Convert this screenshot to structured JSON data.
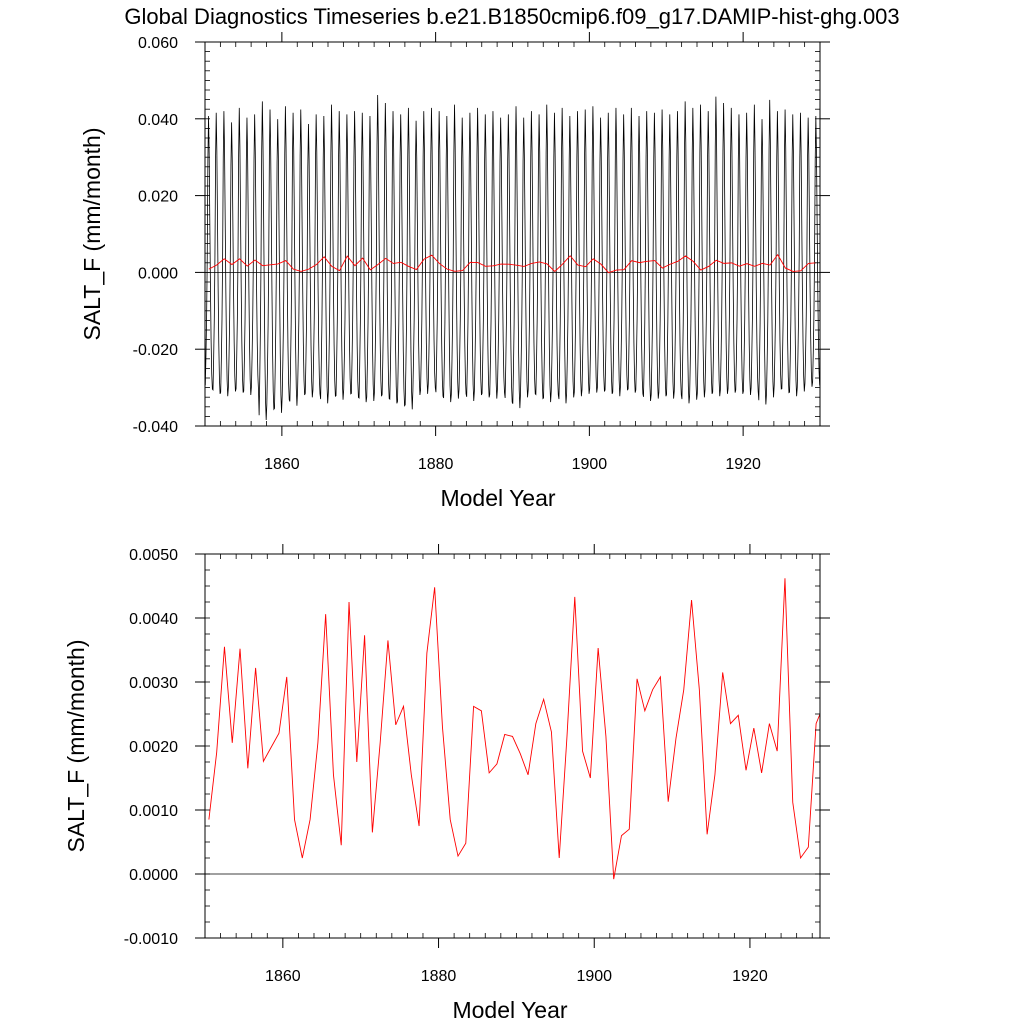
{
  "title": "Global Diagnostics Timeseries b.e21.B1850cmip6.f09_g17.DAMIP-hist-ghg.003",
  "colors": {
    "monthly": "#000000",
    "annual": "#ff0000",
    "zero_line": "#000000"
  },
  "chart_data": [
    {
      "type": "line",
      "xlabel": "Model Year",
      "ylabel": "SALT_F (mm/month)",
      "xlim": [
        1850,
        1930
      ],
      "ylim": [
        -0.04,
        0.06
      ],
      "x_ticks": [
        1860,
        1880,
        1900,
        1920
      ],
      "x_tick_labels": [
        "1860",
        "1880",
        "1900",
        "1920"
      ],
      "y_ticks": [
        -0.04,
        -0.02,
        0.0,
        0.02,
        0.04,
        0.06
      ],
      "y_tick_labels": [
        "-0.040",
        "-0.020",
        "0.000",
        "0.020",
        "0.040",
        "0.060"
      ],
      "reference_line_y": 0.0,
      "series": [
        {
          "color": "#000000",
          "monthly_pattern": [
            -0.03,
            -0.022,
            -0.012,
            0.004,
            0.03,
            0.042,
            0.032,
            0.014,
            -0.004,
            -0.018,
            -0.027,
            -0.031
          ],
          "annual_peak_scale": [
            0.97,
            0.99,
            1.0,
            0.93,
            1.02,
            0.96,
            0.98,
            1.06,
            1.01,
            0.95,
            1.03,
            0.99,
            1.01,
            0.92,
            0.98,
            0.97,
            1.04,
            1.0,
            0.98,
            1.0,
            0.99,
            0.97,
            1.1,
            1.05,
            1.0,
            0.98,
            1.02,
            0.94,
            1.0,
            1.02,
            1.0,
            0.97,
            1.04,
            0.96,
            0.99,
            1.02,
            0.98,
            1.0,
            0.96,
            0.98,
            1.03,
            0.96,
            1.0,
            0.98,
            1.04,
            0.99,
            1.02,
            0.97,
            1.0,
            1.01,
            1.03,
            0.96,
            0.99,
            1.02,
            0.98,
            1.02,
            0.97,
            1.0,
            0.99,
            1.01,
            0.98,
            1.0,
            1.06,
            1.02,
            1.04,
            1.0,
            1.09,
            1.05,
            1.02,
            0.98,
            0.99,
            1.04,
            0.95,
            1.07,
            1.0,
            1.01,
            0.98,
            0.99,
            0.96,
            0.97
          ],
          "annual_trough_scale": [
            0.98,
            1.02,
            1.04,
            1.0,
            1.01,
            1.03,
            0.99,
            1.24,
            1.15,
            1.18,
            1.07,
            1.12,
            1.03,
            1.05,
            1.02,
            1.1,
            1.04,
            1.07,
            1.02,
            1.05,
            1.09,
            1.08,
            1.04,
            1.06,
            1.1,
            1.12,
            1.15,
            1.03,
            1.02,
            0.97,
            1.04,
            1.09,
            1.06,
            1.02,
            1.08,
            1.03,
            1.05,
            1.06,
            1.01,
            1.09,
            1.14,
            1.05,
            1.02,
            1.06,
            1.09,
            1.03,
            1.1,
            1.05,
            1.04,
            1.02,
            1.01,
            1.0,
            1.02,
            1.04,
            0.99,
            1.01,
            1.02,
            1.08,
            1.06,
            1.04,
            1.06,
            1.03,
            1.1,
            1.07,
            1.05,
            1.02,
            1.04,
            1.02,
            1.01,
            1.02,
            1.03,
            1.0,
            1.11,
            1.05,
            0.98,
            1.01,
            1.04,
            1.0,
            0.96,
            0.95
          ]
        },
        {
          "color": "#ff0000",
          "x": [
            1850.5,
            1851.5,
            1852.5,
            1853.5,
            1854.5,
            1855.5,
            1856.5,
            1857.5,
            1858.5,
            1859.5,
            1860.5,
            1861.5,
            1862.5,
            1863.5,
            1864.5,
            1865.5,
            1866.5,
            1867.5,
            1868.5,
            1869.5,
            1870.5,
            1871.5,
            1872.5,
            1873.5,
            1874.5,
            1875.5,
            1876.5,
            1877.5,
            1878.5,
            1879.5,
            1880.5,
            1881.5,
            1882.5,
            1883.5,
            1884.5,
            1885.5,
            1886.5,
            1887.5,
            1888.5,
            1889.5,
            1890.5,
            1891.5,
            1892.5,
            1893.5,
            1894.5,
            1895.5,
            1896.5,
            1897.5,
            1898.5,
            1899.5,
            1900.5,
            1901.5,
            1902.5,
            1903.5,
            1904.5,
            1905.5,
            1906.5,
            1907.5,
            1908.5,
            1909.5,
            1910.5,
            1911.5,
            1912.5,
            1913.5,
            1914.5,
            1915.5,
            1916.5,
            1917.5,
            1918.5,
            1919.5,
            1920.5,
            1921.5,
            1922.5,
            1923.5,
            1924.5,
            1925.5,
            1926.5,
            1927.5,
            1928.5,
            1929.5
          ],
          "values": [
            0.00085,
            0.0019,
            0.00355,
            0.00205,
            0.00352,
            0.00165,
            0.00322,
            0.00176,
            0.00198,
            0.0022,
            0.00308,
            0.00085,
            0.00025,
            0.00085,
            0.00205,
            0.00406,
            0.00155,
            0.00045,
            0.00425,
            0.00175,
            0.00373,
            0.00065,
            0.00205,
            0.00365,
            0.00233,
            0.00262,
            0.00155,
            0.00075,
            0.00345,
            0.00448,
            0.0023,
            0.00085,
            0.00028,
            0.00048,
            0.00262,
            0.00255,
            0.00158,
            0.00172,
            0.00218,
            0.00215,
            0.00188,
            0.00155,
            0.00235,
            0.00273,
            0.00222,
            0.00025,
            0.00215,
            0.00433,
            0.00192,
            0.0015,
            0.00353,
            0.00215,
            -8e-05,
            0.0006,
            0.0007,
            0.00305,
            0.00255,
            0.00288,
            0.00308,
            0.00113,
            0.00212,
            0.00288,
            0.00428,
            0.00288,
            0.00062,
            0.00155,
            0.00315,
            0.00235,
            0.00248,
            0.00162,
            0.00228,
            0.00158,
            0.00235,
            0.00192,
            0.00462,
            0.00112,
            0.00025,
            0.00042,
            0.00235,
            0.0025
          ]
        }
      ]
    },
    {
      "type": "line",
      "xlabel": "Model Year",
      "ylabel": "SALT_F (mm/month)",
      "xlim": [
        1850,
        1929
      ],
      "ylim": [
        -0.001,
        0.005
      ],
      "x_ticks": [
        1860,
        1880,
        1900,
        1920
      ],
      "x_tick_labels": [
        "1860",
        "1880",
        "1900",
        "1920"
      ],
      "y_ticks": [
        -0.001,
        0.0,
        0.001,
        0.002,
        0.003,
        0.004,
        0.005
      ],
      "y_tick_labels": [
        "-0.0010",
        "0.0000",
        "0.0010",
        "0.0020",
        "0.0030",
        "0.0040",
        "0.0050"
      ],
      "reference_line_y": 0.0,
      "series": [
        {
          "color": "#ff0000",
          "x": [
            1850.5,
            1851.5,
            1852.5,
            1853.5,
            1854.5,
            1855.5,
            1856.5,
            1857.5,
            1858.5,
            1859.5,
            1860.5,
            1861.5,
            1862.5,
            1863.5,
            1864.5,
            1865.5,
            1866.5,
            1867.5,
            1868.5,
            1869.5,
            1870.5,
            1871.5,
            1872.5,
            1873.5,
            1874.5,
            1875.5,
            1876.5,
            1877.5,
            1878.5,
            1879.5,
            1880.5,
            1881.5,
            1882.5,
            1883.5,
            1884.5,
            1885.5,
            1886.5,
            1887.5,
            1888.5,
            1889.5,
            1890.5,
            1891.5,
            1892.5,
            1893.5,
            1894.5,
            1895.5,
            1896.5,
            1897.5,
            1898.5,
            1899.5,
            1900.5,
            1901.5,
            1902.5,
            1903.5,
            1904.5,
            1905.5,
            1906.5,
            1907.5,
            1908.5,
            1909.5,
            1910.5,
            1911.5,
            1912.5,
            1913.5,
            1914.5,
            1915.5,
            1916.5,
            1917.5,
            1918.5,
            1919.5,
            1920.5,
            1921.5,
            1922.5,
            1923.5,
            1924.5,
            1925.5,
            1926.5,
            1927.5,
            1928.5,
            1929.5
          ],
          "values": [
            0.00085,
            0.0019,
            0.00355,
            0.00205,
            0.00352,
            0.00165,
            0.00322,
            0.00176,
            0.00198,
            0.0022,
            0.00308,
            0.00085,
            0.00025,
            0.00085,
            0.00205,
            0.00406,
            0.00155,
            0.00045,
            0.00425,
            0.00175,
            0.00373,
            0.00065,
            0.00205,
            0.00365,
            0.00233,
            0.00262,
            0.00155,
            0.00075,
            0.00345,
            0.00448,
            0.0023,
            0.00085,
            0.00028,
            0.00048,
            0.00262,
            0.00255,
            0.00158,
            0.00172,
            0.00218,
            0.00215,
            0.00188,
            0.00155,
            0.00235,
            0.00273,
            0.00222,
            0.00025,
            0.00215,
            0.00433,
            0.00192,
            0.0015,
            0.00353,
            0.00215,
            -8e-05,
            0.0006,
            0.0007,
            0.00305,
            0.00255,
            0.00288,
            0.00308,
            0.00113,
            0.00212,
            0.00288,
            0.00428,
            0.00288,
            0.00062,
            0.00155,
            0.00315,
            0.00235,
            0.00248,
            0.00162,
            0.00228,
            0.00158,
            0.00235,
            0.00192,
            0.00462,
            0.00112,
            0.00025,
            0.00042,
            0.00235,
            0.0025
          ]
        }
      ]
    }
  ]
}
